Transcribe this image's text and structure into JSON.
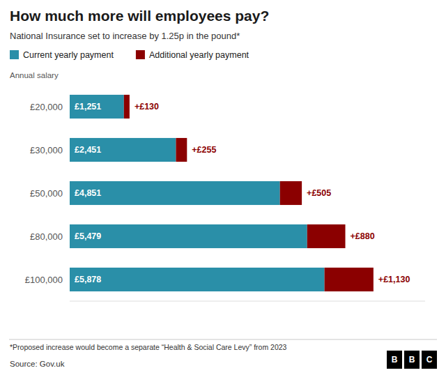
{
  "chart_data": {
    "type": "bar",
    "orientation": "horizontal",
    "stacked": true,
    "data_labels": true,
    "tick_labels": "y",
    "title": "How much more will employees pay?",
    "subtitle": "National Insurance set to increase by 1.25p in the pound*",
    "ylabel": "Annual salary",
    "footnote": "*Proposed increase would become a separate “Health & Social Care Levy” from 2023",
    "source": "Source: Gov.uk",
    "logo": "BBC",
    "categories": [
      "£20,000",
      "£30,000",
      "£50,000",
      "£80,000",
      "£100,000"
    ],
    "series": [
      {
        "name": "Current yearly payment",
        "color": "#2a8fa8",
        "values": [
          1251,
          2451,
          4851,
          5479,
          5878
        ],
        "value_labels": [
          "£1,251",
          "£2,451",
          "£4,851",
          "£5,479",
          "£5,878"
        ]
      },
      {
        "name": "Additional yearly payment",
        "color": "#8b0000",
        "values": [
          130,
          255,
          505,
          880,
          1130
        ],
        "value_labels": [
          "+£130",
          "+£255",
          "+£505",
          "+£880",
          "+£1,130"
        ]
      }
    ],
    "xlim": [
      0,
      8200
    ]
  }
}
